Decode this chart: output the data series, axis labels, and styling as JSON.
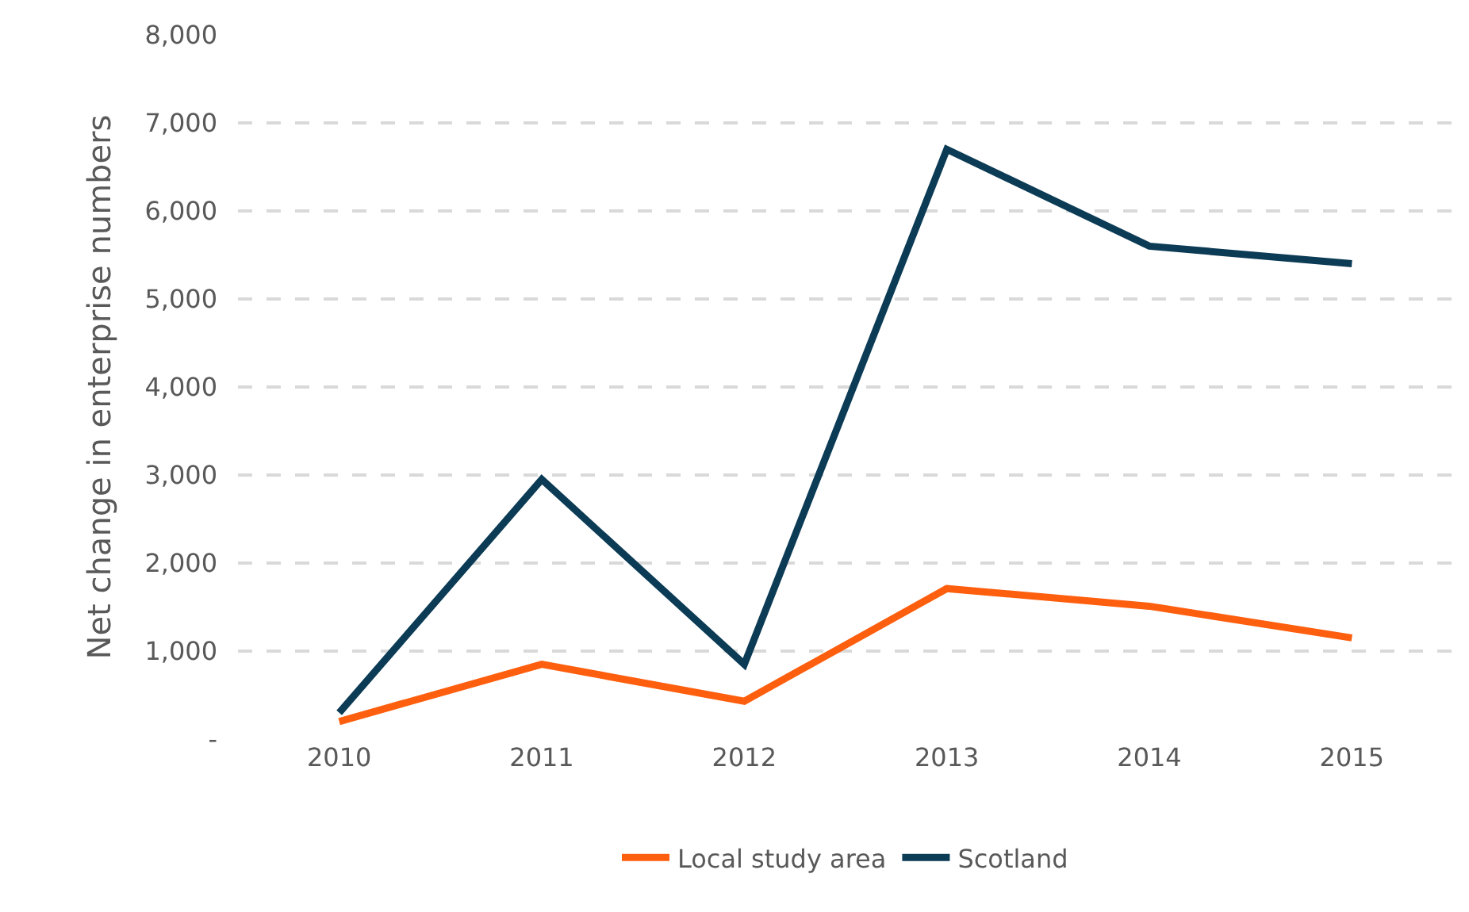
{
  "chart_data": {
    "type": "line",
    "ylabel": "Net change in enterprise numbers",
    "categories": [
      "2010",
      "2011",
      "2012",
      "2013",
      "2014",
      "2015"
    ],
    "series": [
      {
        "name": "Local study area",
        "color": "#fe5f0f",
        "values": [
          200,
          850,
          430,
          1710,
          1510,
          1150
        ]
      },
      {
        "name": "Scotland",
        "color": "#0c3b55",
        "values": [
          300,
          2950,
          850,
          6700,
          5600,
          5400
        ]
      }
    ],
    "ylim": [
      0,
      8000
    ],
    "yticks": [
      {
        "value": 0,
        "label": "-"
      },
      {
        "value": 1000,
        "label": "1,000"
      },
      {
        "value": 2000,
        "label": "2,000"
      },
      {
        "value": 3000,
        "label": "3,000"
      },
      {
        "value": 4000,
        "label": "4,000"
      },
      {
        "value": 5000,
        "label": "5,000"
      },
      {
        "value": 6000,
        "label": "6,000"
      },
      {
        "value": 7000,
        "label": "7,000"
      },
      {
        "value": 8000,
        "label": "8,000"
      }
    ],
    "grid": "y",
    "legend": "bottom",
    "marker": "none",
    "line_style": "solid"
  }
}
